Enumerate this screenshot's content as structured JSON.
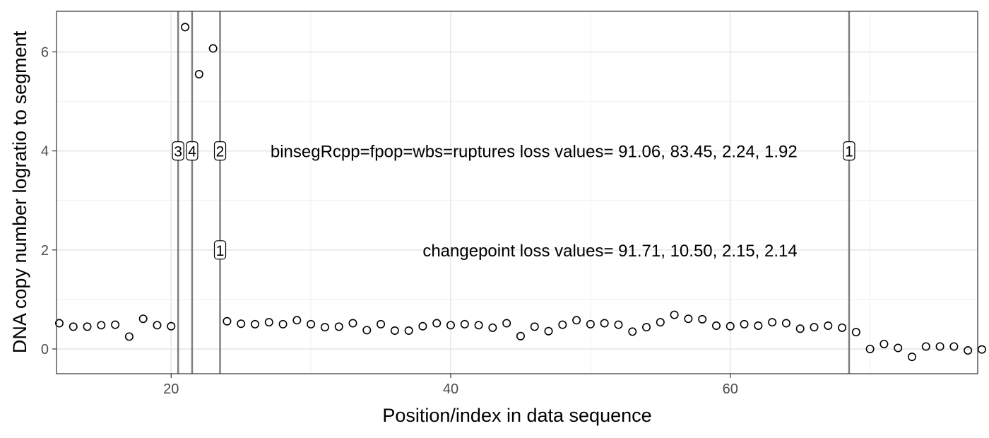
{
  "chart_data": {
    "type": "scatter",
    "title": "",
    "xlabel": "Position/index in data sequence",
    "ylabel": "DNA copy number logratio to segment",
    "xlim": [
      11.8,
      77.7
    ],
    "ylim": [
      -0.5,
      6.82
    ],
    "x_ticks": [
      20,
      40,
      60
    ],
    "y_ticks": [
      0,
      2,
      4,
      6
    ],
    "x_tick_labels": [
      "20",
      "40",
      "60"
    ],
    "y_tick_labels": [
      "0",
      "2",
      "4",
      "6"
    ],
    "grid": true,
    "points": [
      {
        "x": 12,
        "y": 0.52
      },
      {
        "x": 13,
        "y": 0.45
      },
      {
        "x": 14,
        "y": 0.45
      },
      {
        "x": 15,
        "y": 0.48
      },
      {
        "x": 16,
        "y": 0.49
      },
      {
        "x": 17,
        "y": 0.25
      },
      {
        "x": 18,
        "y": 0.61
      },
      {
        "x": 19,
        "y": 0.48
      },
      {
        "x": 20,
        "y": 0.46
      },
      {
        "x": 21,
        "y": 6.5
      },
      {
        "x": 22,
        "y": 5.55
      },
      {
        "x": 23,
        "y": 6.07
      },
      {
        "x": 24,
        "y": 0.56
      },
      {
        "x": 25,
        "y": 0.51
      },
      {
        "x": 26,
        "y": 0.5
      },
      {
        "x": 27,
        "y": 0.54
      },
      {
        "x": 28,
        "y": 0.5
      },
      {
        "x": 29,
        "y": 0.58
      },
      {
        "x": 30,
        "y": 0.5
      },
      {
        "x": 31,
        "y": 0.44
      },
      {
        "x": 32,
        "y": 0.45
      },
      {
        "x": 33,
        "y": 0.52
      },
      {
        "x": 34,
        "y": 0.38
      },
      {
        "x": 35,
        "y": 0.5
      },
      {
        "x": 36,
        "y": 0.37
      },
      {
        "x": 37,
        "y": 0.37
      },
      {
        "x": 38,
        "y": 0.46
      },
      {
        "x": 39,
        "y": 0.52
      },
      {
        "x": 40,
        "y": 0.48
      },
      {
        "x": 41,
        "y": 0.5
      },
      {
        "x": 42,
        "y": 0.48
      },
      {
        "x": 43,
        "y": 0.43
      },
      {
        "x": 44,
        "y": 0.52
      },
      {
        "x": 45,
        "y": 0.26
      },
      {
        "x": 46,
        "y": 0.45
      },
      {
        "x": 47,
        "y": 0.36
      },
      {
        "x": 48,
        "y": 0.49
      },
      {
        "x": 49,
        "y": 0.58
      },
      {
        "x": 50,
        "y": 0.5
      },
      {
        "x": 51,
        "y": 0.52
      },
      {
        "x": 52,
        "y": 0.49
      },
      {
        "x": 53,
        "y": 0.35
      },
      {
        "x": 54,
        "y": 0.44
      },
      {
        "x": 55,
        "y": 0.54
      },
      {
        "x": 56,
        "y": 0.69
      },
      {
        "x": 57,
        "y": 0.61
      },
      {
        "x": 58,
        "y": 0.6
      },
      {
        "x": 59,
        "y": 0.47
      },
      {
        "x": 60,
        "y": 0.46
      },
      {
        "x": 61,
        "y": 0.5
      },
      {
        "x": 62,
        "y": 0.47
      },
      {
        "x": 63,
        "y": 0.54
      },
      {
        "x": 64,
        "y": 0.52
      },
      {
        "x": 65,
        "y": 0.41
      },
      {
        "x": 66,
        "y": 0.44
      },
      {
        "x": 67,
        "y": 0.47
      },
      {
        "x": 68,
        "y": 0.43
      },
      {
        "x": 69,
        "y": 0.34
      },
      {
        "x": 70,
        "y": 0.0
      },
      {
        "x": 71,
        "y": 0.1
      },
      {
        "x": 72,
        "y": 0.02
      },
      {
        "x": 73,
        "y": -0.16
      },
      {
        "x": 74,
        "y": 0.05
      },
      {
        "x": 75,
        "y": 0.05
      },
      {
        "x": 76,
        "y": 0.05
      },
      {
        "x": 77,
        "y": -0.03
      },
      {
        "x": 78,
        "y": -0.01
      }
    ],
    "changepoints": [
      20.5,
      21.5,
      23.5,
      68.5
    ],
    "changepoint_labels": [
      {
        "x": 20.5,
        "y": 4,
        "label": "3"
      },
      {
        "x": 21.5,
        "y": 4,
        "label": "4"
      },
      {
        "x": 23.5,
        "y": 4,
        "label": "2"
      },
      {
        "x": 68.5,
        "y": 4,
        "label": "1"
      },
      {
        "x": 23.5,
        "y": 2,
        "label": "1"
      }
    ],
    "annotations": [
      {
        "x": 64.8,
        "y": 4,
        "anchor": "end",
        "text": "binsegRcpp=fpop=wbs=ruptures loss values= 91.06, 83.45, 2.24, 1.92"
      },
      {
        "x": 64.8,
        "y": 2,
        "anchor": "end",
        "text": "changepoint loss values= 91.71, 10.50, 2.15, 2.14"
      }
    ],
    "colors": {
      "points": "#000000",
      "changepoint_line": "#808080",
      "grid_major": "#ebebeb",
      "grid_minor": "#f2f2f2",
      "panel_border": "#333333"
    }
  }
}
